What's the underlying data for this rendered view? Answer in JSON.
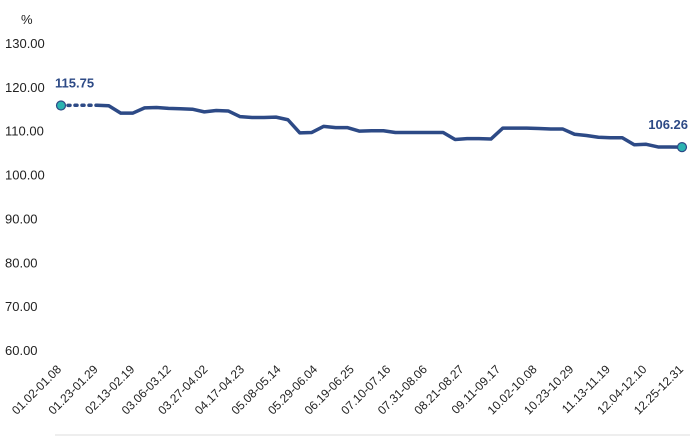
{
  "chart_data": {
    "type": "line",
    "unit_label": "%",
    "ylim": [
      60,
      130
    ],
    "yticks": [
      60,
      70,
      80,
      90,
      100,
      110,
      120,
      130
    ],
    "ytick_labels": [
      "60.00",
      "70.00",
      "80.00",
      "90.00",
      "100.00",
      "110.00",
      "120.00",
      "130.00"
    ],
    "grid": false,
    "line_color": "#2d4a86",
    "marker_color": "#2bb3b1",
    "x_labels": [
      "01.02-01.08",
      "01.23-01.29",
      "02.13-02.19",
      "03.06-03.12",
      "03.27-04.02",
      "04.17-04.23",
      "05.08-05.14",
      "05.29-06.04",
      "06.19-06.25",
      "07.10-07.16",
      "07.31-08.06",
      "08.21-08.27",
      "09.11-09.17",
      "10.02-10.08",
      "10.23-10.29",
      "11.13-11.19",
      "12.04-12.10",
      "12.25-12.31"
    ],
    "dotted_until_index": 3,
    "values": [
      115.75,
      115.8,
      115.8,
      115.8,
      115.7,
      114.0,
      114.0,
      115.2,
      115.3,
      115.1,
      115.0,
      114.9,
      114.3,
      114.6,
      114.5,
      113.2,
      113.0,
      113.0,
      113.1,
      112.5,
      109.5,
      109.6,
      111.0,
      110.7,
      110.7,
      109.9,
      110.0,
      110.0,
      109.6,
      109.6,
      109.6,
      109.6,
      109.6,
      108.0,
      108.2,
      108.2,
      108.1,
      110.6,
      110.6,
      110.6,
      110.5,
      110.4,
      110.4,
      109.2,
      108.9,
      108.5,
      108.4,
      108.4,
      106.8,
      106.9,
      106.3,
      106.3,
      106.26
    ],
    "data_labels": [
      {
        "index": 0,
        "text": "115.75"
      },
      {
        "index": 52,
        "text": "106.26"
      }
    ]
  }
}
